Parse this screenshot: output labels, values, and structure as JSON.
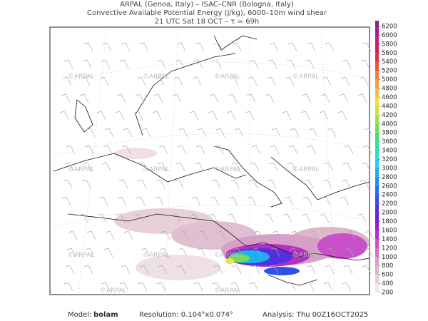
{
  "header": {
    "lines": [
      "ARPAL (Genoa, Italy)  –  ISAC–CNR (Bologna, Italy)",
      "Convective Available Potential Energy (J/kg), 6000–10m wind shear",
      "21 UTC Sat 18 OCT  –  τ = 69h"
    ]
  },
  "watermark": "©ARPAL",
  "colorbar": {
    "ticks": [
      200,
      400,
      600,
      800,
      1000,
      1200,
      1400,
      1600,
      1800,
      2000,
      2200,
      2400,
      2600,
      2800,
      3000,
      3200,
      3400,
      3600,
      3800,
      4000,
      4200,
      4400,
      4600,
      4800,
      5000,
      5200,
      5400,
      5600,
      5800,
      6000,
      6200
    ],
    "colors": [
      "#f0e8ea",
      "#e8d0d8",
      "#dcb8c8",
      "#d8a0c8",
      "#d070c8",
      "#c850c8",
      "#b030c8",
      "#9020d0",
      "#7020d8",
      "#5030e0",
      "#3050e8",
      "#2070f0",
      "#2090f0",
      "#20b0f0",
      "#20d0f0",
      "#20e0d0",
      "#30e0a0",
      "#40e070",
      "#70e050",
      "#a0e040",
      "#d0e040",
      "#f0e040",
      "#f0c040",
      "#f0a040",
      "#f08040",
      "#f05040",
      "#e03040",
      "#d02060",
      "#c02080",
      "#a02090"
    ]
  },
  "footer": {
    "model_label": "Model:",
    "model": "bolam",
    "resolution": "Resolution: 0.104°x0.074°",
    "analysis": "Analysis: Thu 00Z16OCT2025"
  }
}
